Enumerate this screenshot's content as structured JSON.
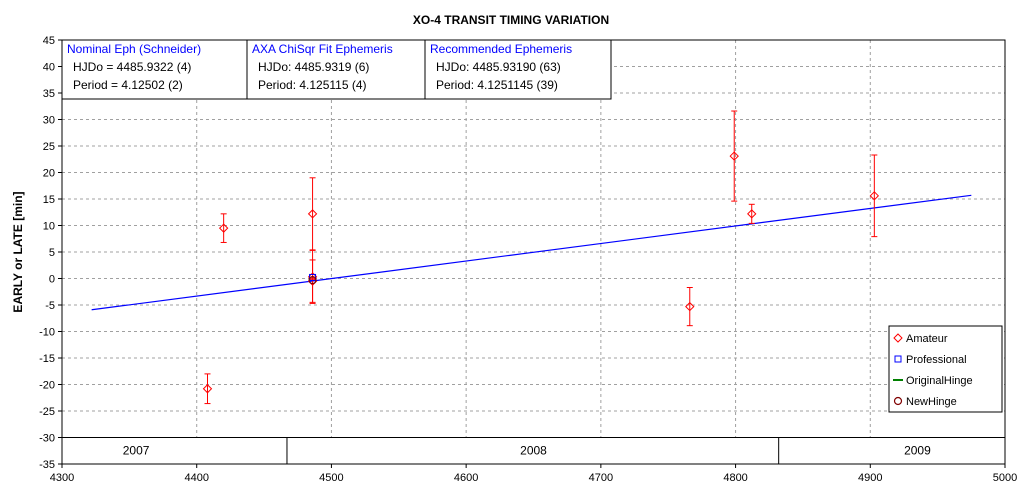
{
  "chart_data": {
    "type": "scatter",
    "title": "XO-4 TRANSIT TIMING VARIATION",
    "ylabel": "EARLY or LATE [min]",
    "xlabel": "",
    "xlim": [
      4300,
      5000
    ],
    "ylim": [
      -35,
      45
    ],
    "x_ticks": [
      "4300",
      "4400",
      "4500",
      "4600",
      "4700",
      "4800",
      "4900",
      "5000"
    ],
    "y_ticks": [
      "45",
      "40",
      "35",
      "30",
      "25",
      "20",
      "15",
      "10",
      "5",
      "0",
      "-5",
      "-10",
      "-15",
      "-20",
      "-25",
      "-30",
      "-35"
    ],
    "grid": true,
    "series": [
      {
        "name": "Amateur",
        "color": "#ff0000",
        "marker": "diamond",
        "points": [
          {
            "x": 4408,
            "y": -20.8,
            "err": 2.8
          },
          {
            "x": 4420,
            "y": 9.5,
            "err": 2.7
          },
          {
            "x": 4486,
            "y": 12.2,
            "err": 6.8
          },
          {
            "x": 4486,
            "y": 0.3,
            "err": 5.0
          },
          {
            "x": 4486,
            "y": -0.5,
            "err": 4.0
          },
          {
            "x": 4766,
            "y": -5.3,
            "err": 3.6
          },
          {
            "x": 4799,
            "y": 23.1,
            "err": 8.5
          },
          {
            "x": 4812,
            "y": 12.2,
            "err": 1.8
          },
          {
            "x": 4903,
            "y": 15.6,
            "err": 7.7
          }
        ]
      },
      {
        "name": "Professional",
        "color": "#0000ff",
        "marker": "square",
        "points": [
          {
            "x": 4486,
            "y": 0.2,
            "err": 0
          }
        ]
      },
      {
        "name": "OriginalHinge",
        "color": "#008000",
        "marker": "line",
        "points": []
      },
      {
        "name": "NewHinge",
        "color": "#800000",
        "marker": "circle",
        "points": [
          {
            "x": 4486,
            "y": -0.3,
            "err": 0
          }
        ]
      }
    ],
    "trend_line": {
      "color": "#0000ff",
      "x": [
        4322,
        4975
      ],
      "y": [
        -5.9,
        15.7
      ]
    },
    "legend": {
      "placement": "bottom-right"
    },
    "year_labels": [
      {
        "label": "2007",
        "x": 4355
      },
      {
        "label": "2008",
        "x": 4650
      },
      {
        "label": "2009",
        "x": 4935
      }
    ],
    "year_dividers": [
      4467,
      4832
    ],
    "info_boxes": [
      {
        "header": "Nominal Eph (Schneider)",
        "line1": "HJDo = 4485.9322 (4)",
        "line2": "Period = 4.12502 (2)"
      },
      {
        "header": "AXA ChiSqr Fit Ephemeris",
        "line1": "HJDo:  4485.9319 (6)",
        "line2": "Period: 4.125115 (4)"
      },
      {
        "header": "Recommended Ephemeris",
        "line1": "HJDo:  4485.93190 (63)",
        "line2": "Period: 4.1251145 (39)"
      }
    ]
  }
}
